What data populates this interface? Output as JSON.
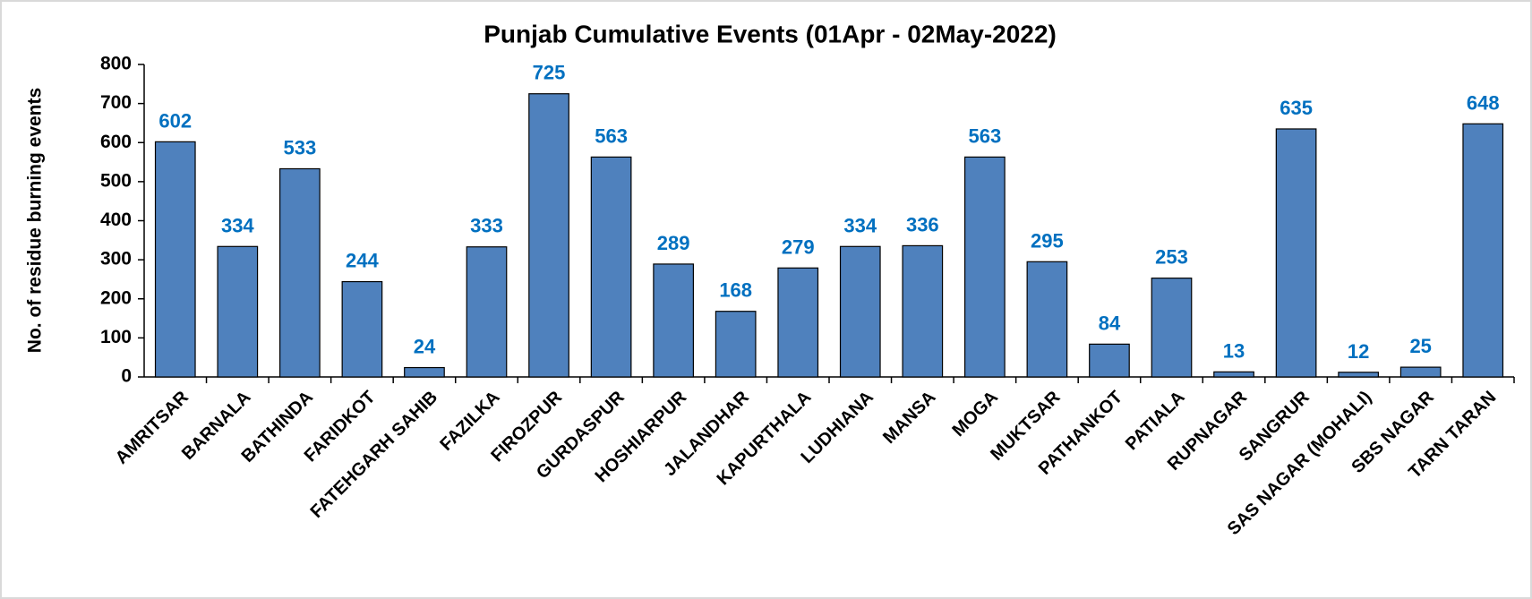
{
  "chart_data": {
    "type": "bar",
    "title": "Punjab Cumulative Events (01Apr - 02May-2022)",
    "y_label": "No. of residue burning events",
    "categories": [
      "AMRITSAR",
      "BARNALA",
      "BATHINDA",
      "FARIDKOT",
      "FATEHGARH SAHIB",
      "FAZILKA",
      "FIROZPUR",
      "GURDASPUR",
      "HOSHIARPUR",
      "JALANDHAR",
      "KAPURTHALA",
      "LUDHIANA",
      "MANSA",
      "MOGA",
      "MUKTSAR",
      "PATHANKOT",
      "PATIALA",
      "RUPNAGAR",
      "SANGRUR",
      "SAS NAGAR (MOHALI)",
      "SBS NAGAR",
      "TARN TARAN"
    ],
    "values": [
      602,
      334,
      533,
      244,
      24,
      333,
      725,
      563,
      289,
      168,
      279,
      334,
      336,
      563,
      295,
      84,
      253,
      13,
      635,
      12,
      25,
      648
    ],
    "color": "#4f81bd",
    "label_color": "#0070c0",
    "ylim": [
      0,
      800
    ],
    "yticks": [
      0,
      100,
      200,
      300,
      400,
      500,
      600,
      700,
      800
    ],
    "grid": false
  }
}
